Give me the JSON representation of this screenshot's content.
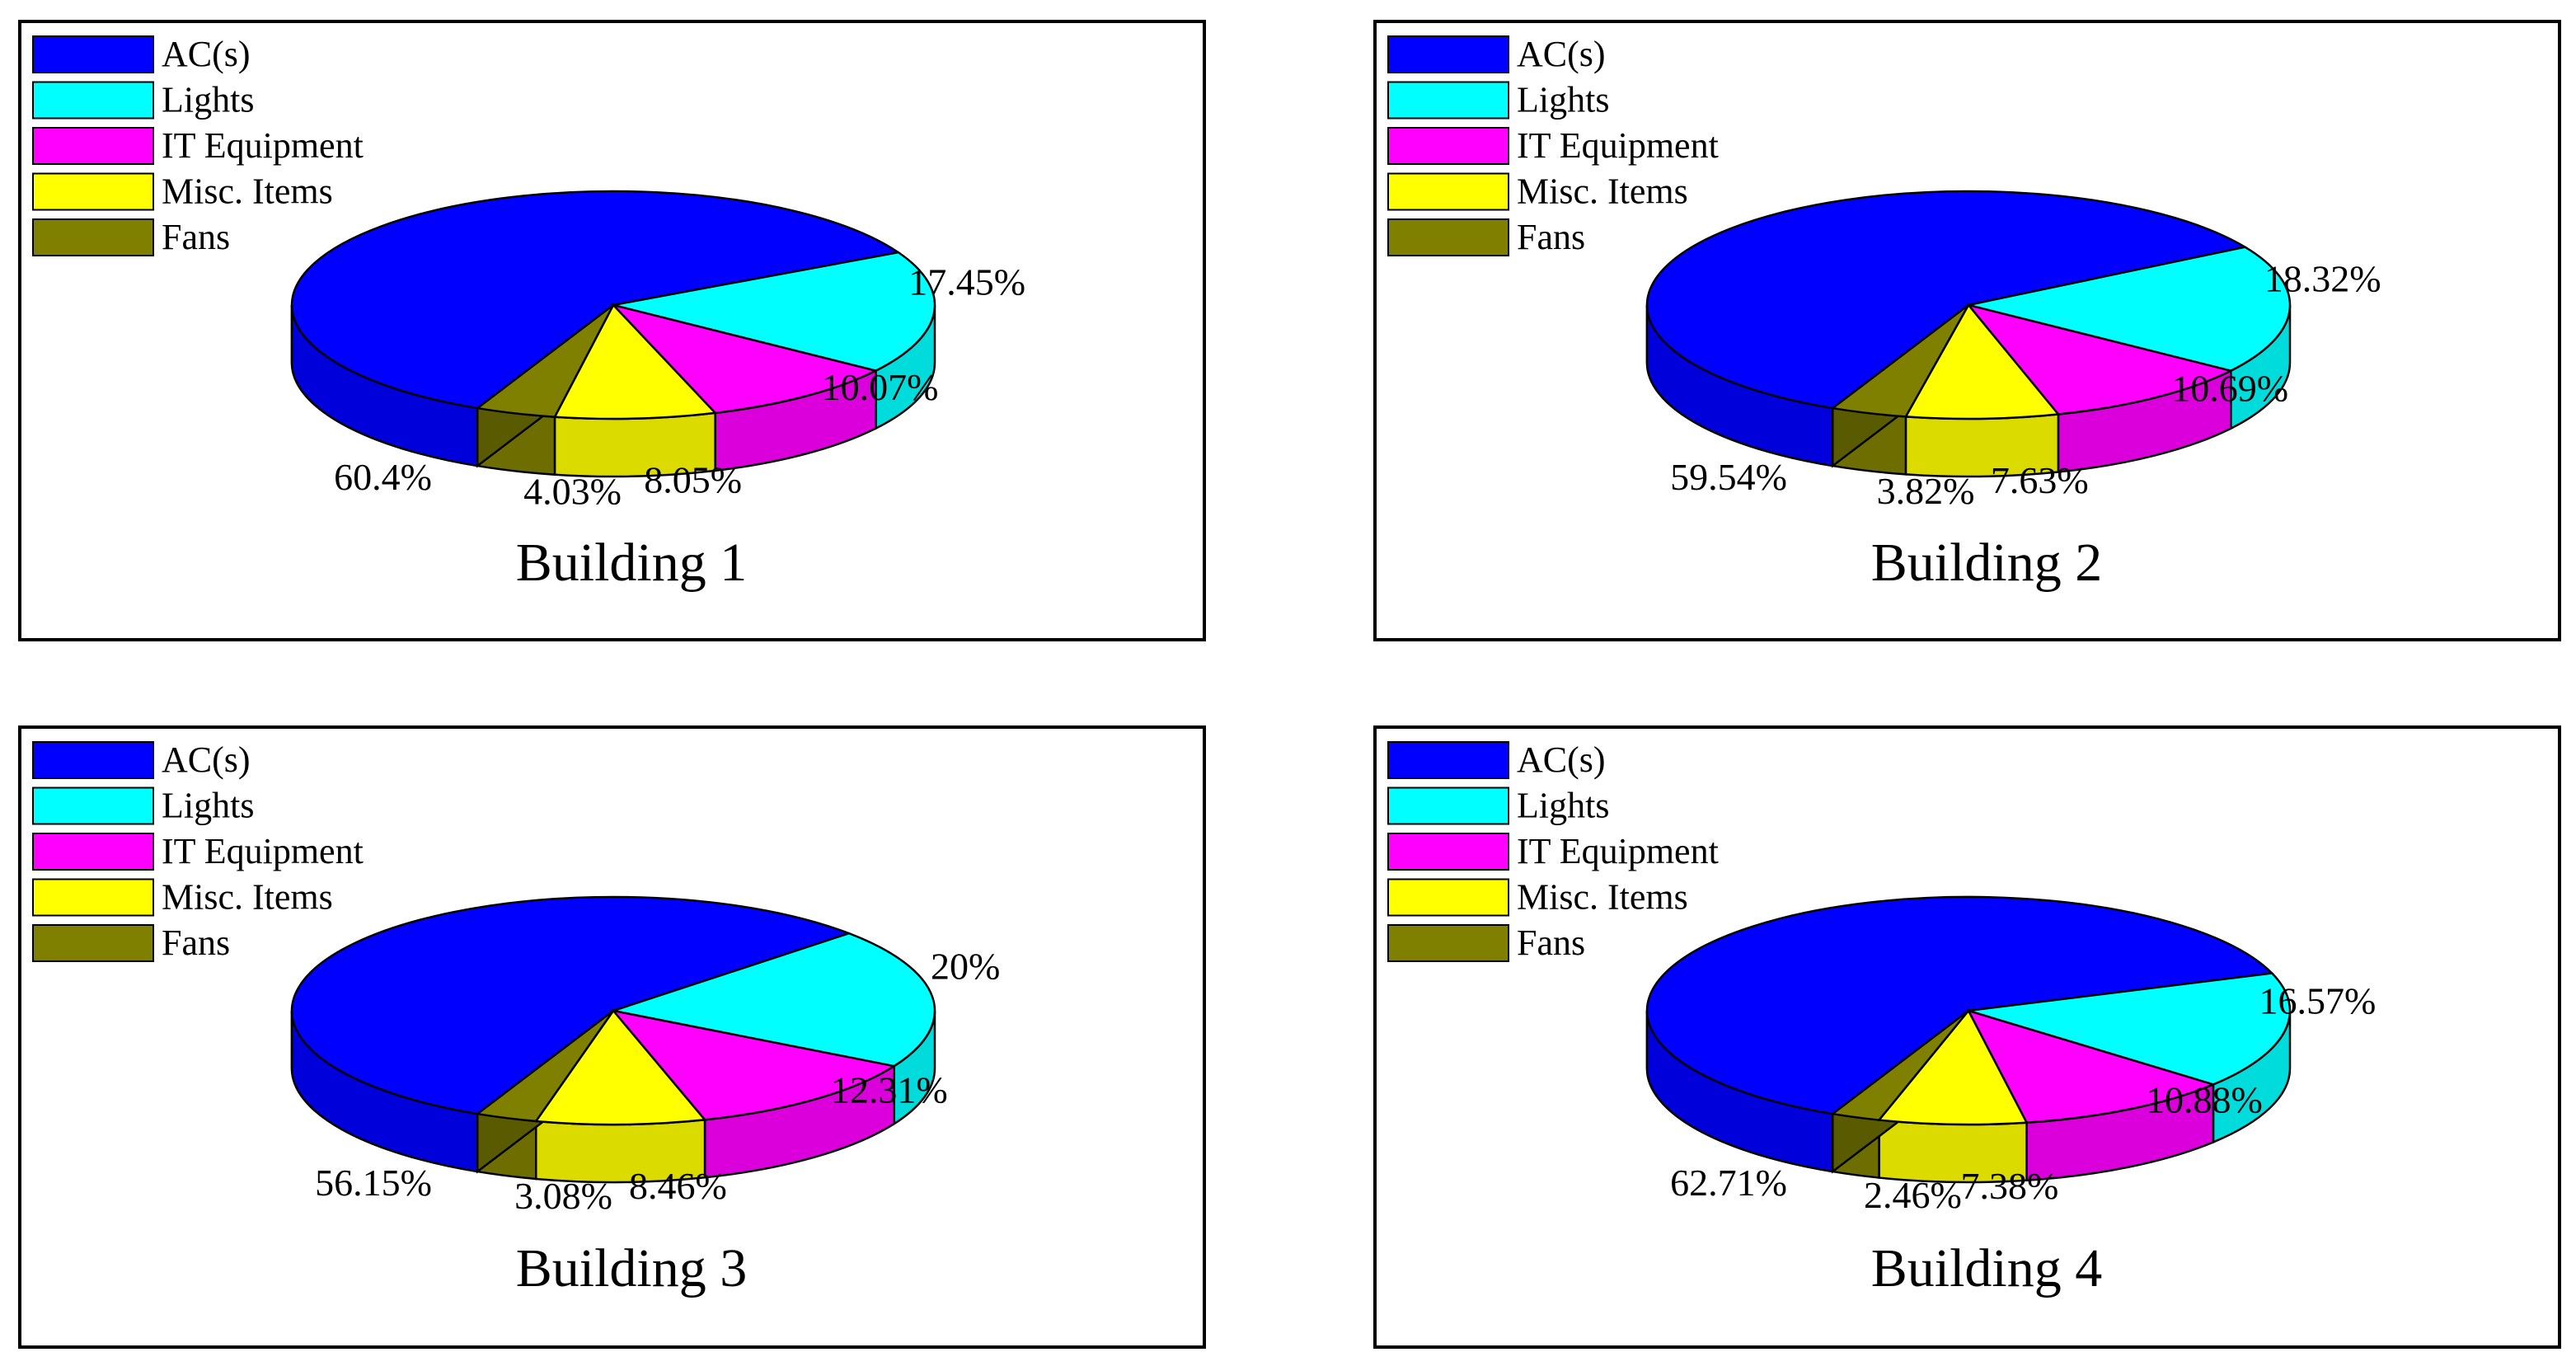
{
  "colors": {
    "AC(s)": "#0000ff",
    "Lights": "#00ffff",
    "IT Equipment": "#ff00ff",
    "Misc. Items": "#ffff00",
    "Fans": "#808000",
    "outline": "#000000"
  },
  "chart_data": [
    {
      "type": "pie",
      "title": "Building 1",
      "legend": [
        "AC(s)",
        "Lights",
        "IT Equipment",
        "Misc. Items",
        "Fans"
      ],
      "values": [
        60.4,
        17.45,
        10.07,
        8.05,
        4.03
      ],
      "labels": [
        "60.4%",
        "17.45%",
        "10.07%",
        "8.05%",
        "4.03%"
      ]
    },
    {
      "type": "pie",
      "title": "Building 2",
      "legend": [
        "AC(s)",
        "Lights",
        "IT Equipment",
        "Misc. Items",
        "Fans"
      ],
      "values": [
        59.54,
        18.32,
        10.69,
        7.63,
        3.82
      ],
      "labels": [
        "59.54%",
        "18.32%",
        "10.69%",
        "7.63%",
        "3.82%"
      ]
    },
    {
      "type": "pie",
      "title": "Building 3",
      "legend": [
        "AC(s)",
        "Lights",
        "IT Equipment",
        "Misc. Items",
        "Fans"
      ],
      "values": [
        56.15,
        20,
        12.31,
        8.46,
        3.08
      ],
      "labels": [
        "56.15%",
        "20%",
        "12.31%",
        "8.46%",
        "3.08%"
      ]
    },
    {
      "type": "pie",
      "title": "Building 4",
      "legend": [
        "AC(s)",
        "Lights",
        "IT Equipment",
        "Misc. Items",
        "Fans"
      ],
      "values": [
        62.71,
        16.57,
        10.88,
        7.38,
        2.46
      ],
      "labels": [
        "62.71%",
        "16.57%",
        "10.88%",
        "7.38%",
        "2.46%"
      ]
    }
  ]
}
